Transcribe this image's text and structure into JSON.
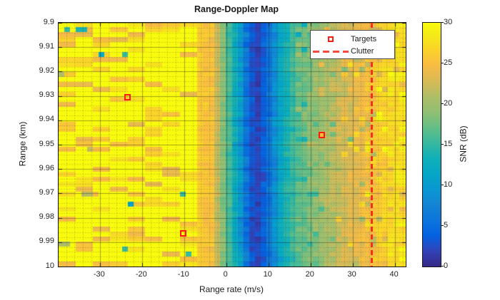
{
  "chart_data": {
    "type": "heatmap",
    "title": "Range-Doppler Map",
    "xlabel": "Range rate (m/s)",
    "ylabel": "Range (km)",
    "colorbar_label": "SNR (dB)",
    "xlim": [
      -39.8,
      42.6
    ],
    "ylim": [
      9.9,
      10.0
    ],
    "clim": [
      0,
      30
    ],
    "x_ticks": [
      -30,
      -20,
      -10,
      0,
      10,
      20,
      30,
      40
    ],
    "x_tick_labels": [
      "-30",
      "-20",
      "-10",
      "0",
      "10",
      "20",
      "30",
      "40"
    ],
    "y_ticks": [
      9.9,
      9.91,
      9.92,
      9.93,
      9.94,
      9.95,
      9.96,
      9.97,
      9.98,
      9.99,
      10
    ],
    "y_tick_labels": [
      "9.9",
      "9.91",
      "9.92",
      "9.93",
      "9.94",
      "9.95",
      "9.96",
      "9.97",
      "9.98",
      "9.99",
      "10"
    ],
    "colorbar_ticks": [
      0,
      5,
      10,
      15,
      20,
      25,
      30
    ],
    "colorbar_tick_labels": [
      "0",
      "5",
      "10",
      "15",
      "20",
      "25",
      "30"
    ],
    "grid": {
      "major": true,
      "minor": true,
      "minor_x_step": 2,
      "minor_y_step": 0.002
    },
    "heatmap": {
      "n_cols": 60,
      "n_rows": 49,
      "seed": 7,
      "noise_db": 1.2,
      "right_noise_db": 1.8,
      "snr_profile": [
        [
          -39.8,
          30.0
        ],
        [
          -14,
          30.0
        ],
        [
          -10,
          29.5
        ],
        [
          -8,
          28.5
        ],
        [
          -6.5,
          26.2
        ],
        [
          -5,
          25.4
        ],
        [
          -4,
          25.6
        ],
        [
          -3,
          25.0
        ],
        [
          -2.2,
          22.5
        ],
        [
          -1.2,
          19.8
        ],
        [
          0,
          17.2
        ],
        [
          1,
          15.2
        ],
        [
          2,
          13.2
        ],
        [
          3,
          10.8
        ],
        [
          4,
          8.2
        ],
        [
          5,
          5.2
        ],
        [
          6,
          3.0
        ],
        [
          7,
          1.8
        ],
        [
          8,
          2.0
        ],
        [
          9,
          3.8
        ],
        [
          10,
          5.4
        ],
        [
          11,
          7.0
        ],
        [
          12,
          9.4
        ],
        [
          13,
          11.6
        ],
        [
          14,
          13.2
        ],
        [
          15,
          14.6
        ],
        [
          16,
          15.6
        ],
        [
          17,
          16.6
        ],
        [
          18,
          17.3
        ],
        [
          19,
          17.9
        ],
        [
          20,
          18.6
        ],
        [
          22,
          19.6
        ],
        [
          24,
          20.6
        ],
        [
          26,
          21.6
        ],
        [
          28,
          22.5
        ],
        [
          30,
          23.3
        ],
        [
          32,
          24.2
        ],
        [
          34,
          25.0
        ],
        [
          35,
          25.5
        ],
        [
          36,
          26.0
        ],
        [
          38,
          26.8
        ],
        [
          40,
          27.4
        ],
        [
          42.6,
          27.8
        ]
      ],
      "anomalies": [
        {
          "x0": -36.3,
          "x1": -33.6,
          "y": 9.9035,
          "snr": 14
        },
        {
          "x0": -39.8,
          "x1": -38.3,
          "y": 9.9215,
          "snr": 21
        },
        {
          "x0": -33.6,
          "x1": -31.2,
          "y": 9.9525,
          "snr": 22
        },
        {
          "x0": -34.6,
          "x1": -32.2,
          "y": 9.9695,
          "snr": 21.5
        },
        {
          "x0": -32.2,
          "x1": -29.8,
          "y": 9.9695,
          "snr": 25
        },
        {
          "x0": -39.8,
          "x1": -37.2,
          "y": 9.9905,
          "snr": 21
        }
      ]
    },
    "colormap": {
      "name": "parula",
      "anchors": [
        [
          0.0,
          "#352a87"
        ],
        [
          0.063,
          "#3243ba"
        ],
        [
          0.127,
          "#0363e1"
        ],
        [
          0.19,
          "#0d75dc"
        ],
        [
          0.254,
          "#1485d4"
        ],
        [
          0.317,
          "#0998d1"
        ],
        [
          0.381,
          "#06a7c6"
        ],
        [
          0.444,
          "#0fafb9"
        ],
        [
          0.508,
          "#38b99e"
        ],
        [
          0.571,
          "#65be86"
        ],
        [
          0.635,
          "#92bf73"
        ],
        [
          0.698,
          "#aebe67"
        ],
        [
          0.762,
          "#d9ba56"
        ],
        [
          0.825,
          "#f8bb44"
        ],
        [
          0.889,
          "#fad32a"
        ],
        [
          0.952,
          "#f5eb18"
        ],
        [
          1.0,
          "#f9fb0e"
        ]
      ]
    },
    "targets": {
      "label": "Targets",
      "marker_color": "#ff1a10",
      "points": [
        {
          "range_rate": -23.4,
          "range_km": 9.9305
        },
        {
          "range_rate": 22.6,
          "range_km": 9.946
        },
        {
          "range_rate": -10.2,
          "range_km": 9.9865
        }
      ]
    },
    "clutter": {
      "label": "Clutter",
      "line_color": "#f5311d",
      "range_rate": 34.5
    },
    "legend": {
      "position": "northeast",
      "targets_label": "Targets",
      "clutter_label": "Clutter"
    }
  }
}
